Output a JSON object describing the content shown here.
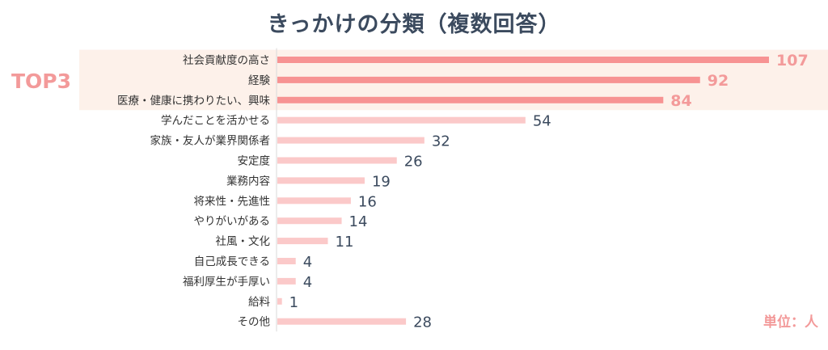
{
  "chart_data": {
    "type": "bar",
    "orientation": "horizontal",
    "title": "きっかけの分類（複数回答）",
    "categories": [
      "社会貢献度の高さ",
      "経験",
      "医療・健康に携わりたい、興味",
      "学んだことを活かせる",
      "家族・友人が業界関係者",
      "安定度",
      "業務内容",
      "将来性・先進性",
      "やりがいがある",
      "社風・文化",
      "自己成長できる",
      "福利厚生が手厚い",
      "給料",
      "その他"
    ],
    "values": [
      107,
      92,
      84,
      54,
      32,
      26,
      19,
      16,
      14,
      11,
      4,
      4,
      1,
      28
    ],
    "highlight_count": 3,
    "highlight_label": "TOP3",
    "unit_label": "単位：人",
    "xlim": [
      0,
      107
    ],
    "colors": {
      "highlight_bar": "#f79393",
      "normal_bar": "#fbc9c9",
      "highlight_band": "#fdf1ea",
      "highlight_text": "#f39a9a",
      "value_text": "#3b4a5e",
      "title": "#3b4a5e"
    }
  }
}
